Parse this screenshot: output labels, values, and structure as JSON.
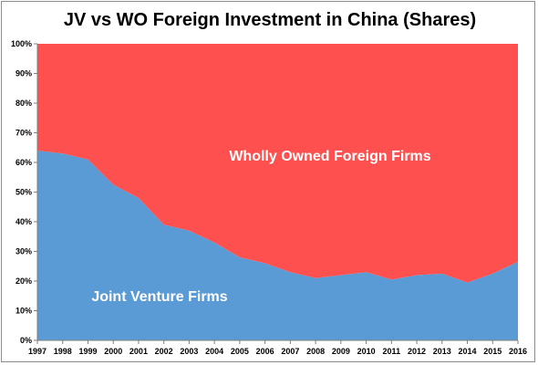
{
  "chart_data": {
    "type": "area",
    "title": "JV vs WO Foreign Investment in China (Shares)",
    "xlabel": "",
    "ylabel": "",
    "x": [
      "1997",
      "1998",
      "1999",
      "2000",
      "2001",
      "2002",
      "2003",
      "2004",
      "2005",
      "2006",
      "2007",
      "2008",
      "2009",
      "2010",
      "2011",
      "2012",
      "2013",
      "2014",
      "2015",
      "2016"
    ],
    "ylim": [
      0,
      100
    ],
    "yticks": [
      "0%",
      "10%",
      "20%",
      "30%",
      "40%",
      "50%",
      "60%",
      "70%",
      "80%",
      "90%",
      "100%"
    ],
    "stacked": true,
    "grid": false,
    "series": [
      {
        "name": "Joint Venture Firms",
        "color": "#5b9bd5",
        "values": [
          64,
          63,
          61,
          52.5,
          48,
          39,
          37,
          33,
          28,
          26,
          23,
          21,
          22,
          23,
          20.5,
          22,
          22.5,
          19.5,
          22.5,
          26.5
        ]
      },
      {
        "name": "Wholly Owned Foreign Firms",
        "color": "#ff5050",
        "values": [
          36,
          37,
          39,
          47.5,
          52,
          61,
          63,
          67,
          72,
          74,
          77,
          79,
          78,
          77,
          79.5,
          78,
          77.5,
          80.5,
          77.5,
          73.5
        ]
      }
    ]
  }
}
